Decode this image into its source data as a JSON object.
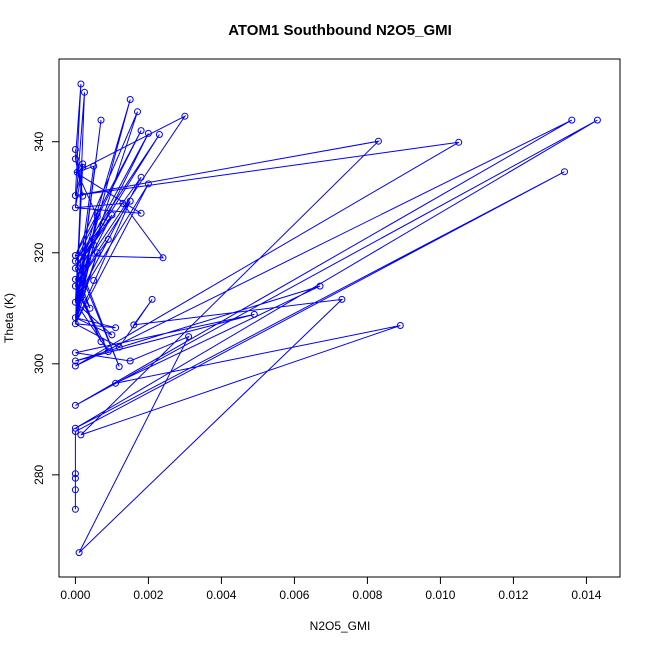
{
  "chart_data": {
    "type": "line",
    "title": "ATOM1 Southbound N2O5_GMI",
    "xlabel": "N2O5_GMI",
    "ylabel": "Theta (K)",
    "xlim": [
      -0.00045,
      0.01492
    ],
    "ylim": [
      261.6,
      354.9
    ],
    "xticks": [
      0.0,
      0.002,
      0.004,
      0.006,
      0.008,
      0.01,
      0.012,
      0.014
    ],
    "xtick_labels": [
      "0.000",
      "0.002",
      "0.004",
      "0.006",
      "0.008",
      "0.010",
      "0.012",
      "0.014"
    ],
    "yticks": [
      280,
      300,
      320,
      340
    ],
    "ytick_labels": [
      "280",
      "300",
      "320",
      "340"
    ],
    "grid": false,
    "series": [
      {
        "color": "#0000ff",
        "marker": "open-circle",
        "points": [
          [
            0.0,
            273.8
          ],
          [
            0.0,
            277.3
          ],
          [
            0.0,
            279.4
          ],
          [
            0.0,
            280.2
          ],
          [
            0.0,
            287.8
          ],
          [
            0.00015,
            287.2
          ],
          [
            0.0,
            288.4
          ],
          [
            0.0,
            292.5
          ],
          [
            0.0,
            299.6
          ],
          [
            0.0,
            300.5
          ],
          [
            0.0,
            302.0
          ],
          [
            0.0,
            307.2
          ],
          [
            0.0,
            308.3
          ],
          [
            0.0,
            311.1
          ],
          [
            0.0,
            314.0
          ],
          [
            0.0,
            315.2
          ],
          [
            0.0,
            317.2
          ],
          [
            0.0,
            318.5
          ],
          [
            0.0,
            319.5
          ],
          [
            0.0,
            328.1
          ],
          [
            0.0,
            330.3
          ],
          [
            5e-05,
            334.5
          ],
          [
            0.0,
            336.9
          ],
          [
            0.0,
            338.6
          ],
          [
            0.00015,
            350.4
          ],
          [
            0.00025,
            348.9
          ],
          [
            0.0002,
            330.2
          ],
          [
            0.0002,
            335.4
          ],
          [
            0.0002,
            336.0
          ],
          [
            0.0003,
            320.6
          ],
          [
            0.0004,
            310.0
          ],
          [
            0.0005,
            335.6
          ],
          [
            0.0005,
            321.4
          ],
          [
            0.0005,
            315.0
          ],
          [
            0.0006,
            326.5
          ],
          [
            0.0006,
            320.0
          ],
          [
            0.0006,
            327.1
          ],
          [
            0.0007,
            343.9
          ],
          [
            0.0007,
            304.0
          ],
          [
            0.0008,
            325.5
          ],
          [
            0.0009,
            302.2
          ],
          [
            0.0009,
            322.4
          ],
          [
            0.001,
            305.2
          ],
          [
            0.001,
            326.8
          ],
          [
            0.0011,
            306.5
          ],
          [
            0.0011,
            296.5
          ],
          [
            0.0012,
            299.5
          ],
          [
            0.0012,
            303.0
          ],
          [
            0.0013,
            328.9
          ],
          [
            0.0015,
            329.3
          ],
          [
            0.0015,
            300.5
          ],
          [
            0.0015,
            347.6
          ],
          [
            0.0016,
            307.0
          ],
          [
            0.0017,
            345.4
          ],
          [
            0.0018,
            342.0
          ],
          [
            0.0018,
            333.6
          ],
          [
            0.0018,
            327.1
          ],
          [
            0.002,
            332.4
          ],
          [
            0.002,
            341.5
          ],
          [
            0.0021,
            311.6
          ],
          [
            0.0023,
            341.3
          ],
          [
            0.0024,
            319.1
          ],
          [
            0.003,
            344.6
          ],
          [
            0.0031,
            304.9
          ],
          [
            0.0049,
            308.9
          ],
          [
            0.0067,
            314.0
          ],
          [
            0.0073,
            311.6
          ],
          [
            0.0083,
            340.1
          ],
          [
            0.0089,
            306.9
          ],
          [
            0.0105,
            339.9
          ],
          [
            0.0134,
            334.6
          ],
          [
            0.0136,
            343.9
          ],
          [
            0.0143,
            343.9
          ],
          [
            0.0001,
            266.0
          ]
        ],
        "path": [
          [
            0.0,
            273.8
          ],
          [
            0.0,
            277.3
          ],
          [
            0.0,
            279.4
          ],
          [
            0.0,
            280.2
          ],
          [
            0.0,
            287.8
          ],
          [
            0.0134,
            334.6
          ],
          [
            0.0,
            288.4
          ],
          [
            0.0143,
            343.9
          ],
          [
            0.0,
            292.5
          ],
          [
            0.0136,
            343.9
          ],
          [
            0.0,
            299.6
          ],
          [
            0.0105,
            339.9
          ],
          [
            0.0,
            330.3
          ],
          [
            0.0083,
            340.1
          ],
          [
            0.00015,
            287.2
          ],
          [
            0.0089,
            306.9
          ],
          [
            0.0011,
            296.5
          ],
          [
            0.0067,
            314.0
          ],
          [
            0.0,
            300.5
          ],
          [
            0.0049,
            308.9
          ],
          [
            0.0,
            302.0
          ],
          [
            0.0015,
            300.5
          ],
          [
            0.0031,
            304.9
          ],
          [
            0.0001,
            266.0
          ],
          [
            0.0073,
            311.6
          ],
          [
            0.0016,
            307.0
          ],
          [
            0.0021,
            311.6
          ],
          [
            0.0012,
            303.0
          ],
          [
            0.0,
            307.2
          ],
          [
            0.0011,
            306.5
          ],
          [
            0.0,
            308.3
          ],
          [
            0.001,
            305.2
          ],
          [
            0.0,
            311.1
          ],
          [
            0.0009,
            302.2
          ],
          [
            0.0,
            314.0
          ],
          [
            0.0007,
            304.0
          ],
          [
            0.0,
            315.2
          ],
          [
            0.0004,
            310.0
          ],
          [
            0.0,
            317.2
          ],
          [
            0.0008,
            325.5
          ],
          [
            0.0,
            318.5
          ],
          [
            0.0012,
            299.5
          ],
          [
            0.0,
            319.5
          ],
          [
            0.0024,
            319.1
          ],
          [
            0.0013,
            328.9
          ],
          [
            0.0,
            328.1
          ],
          [
            0.0018,
            327.1
          ],
          [
            0.0,
            334.5
          ],
          [
            0.003,
            344.6
          ],
          [
            0.0,
            315.2
          ],
          [
            0.002,
            341.5
          ],
          [
            0.0,
            317.2
          ],
          [
            0.0023,
            341.3
          ],
          [
            0.0,
            318.5
          ],
          [
            0.0018,
            342.0
          ],
          [
            0.0,
            319.5
          ],
          [
            0.0017,
            345.4
          ],
          [
            0.0,
            311.1
          ],
          [
            0.0015,
            347.6
          ],
          [
            0.0,
            314.0
          ],
          [
            0.0015,
            329.3
          ],
          [
            0.0,
            307.2
          ],
          [
            0.0007,
            343.9
          ],
          [
            0.0,
            308.3
          ],
          [
            0.0006,
            326.5
          ],
          [
            5e-05,
            334.5
          ],
          [
            0.0005,
            335.6
          ],
          [
            0.0,
            311.1
          ],
          [
            0.0009,
            322.4
          ],
          [
            0.0,
            314.0
          ],
          [
            0.001,
            326.8
          ],
          [
            0.0,
            317.2
          ],
          [
            0.0018,
            333.6
          ],
          [
            0.0,
            311.1
          ],
          [
            0.002,
            332.4
          ],
          [
            0.0,
            307.2
          ],
          [
            0.0006,
            320.0
          ],
          [
            0.0,
            308.3
          ],
          [
            0.0005,
            321.4
          ],
          [
            0.0,
            307.2
          ],
          [
            0.0006,
            327.1
          ],
          [
            0.0,
            308.3
          ],
          [
            0.0003,
            320.6
          ],
          [
            0.0,
            311.1
          ],
          [
            0.0002,
            336.0
          ],
          [
            0.0,
            307.2
          ],
          [
            0.00025,
            348.9
          ],
          [
            0.0,
            328.1
          ],
          [
            0.0002,
            335.4
          ],
          [
            0.0,
            330.3
          ],
          [
            0.00015,
            350.4
          ],
          [
            0.0,
            336.9
          ],
          [
            0.0002,
            330.2
          ],
          [
            0.0,
            338.6
          ]
        ]
      }
    ]
  }
}
